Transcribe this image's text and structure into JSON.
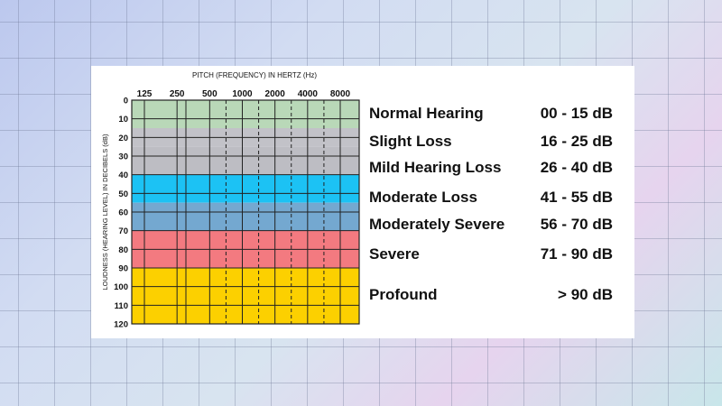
{
  "chart_data": {
    "type": "heatmap",
    "title": "",
    "xlabel": "PITCH (FREQUENCY) IN HERTZ (Hz)",
    "ylabel": "LOUDNESS (HEARING LEVEL) IN DECIBELS (dB)",
    "x_ticks": [
      "125",
      "250",
      "500",
      "1000",
      "2000",
      "4000",
      "8000"
    ],
    "y_ticks": [
      "0",
      "10",
      "20",
      "30",
      "40",
      "50",
      "60",
      "70",
      "80",
      "90",
      "100",
      "110",
      "120"
    ],
    "ylim": [
      0,
      120
    ],
    "y_inverted": true,
    "bands": [
      {
        "label": "Normal Hearing",
        "range": "00 - 15 dB",
        "from": 0,
        "to": 15,
        "color": "#b9d8b8"
      },
      {
        "label": "Slight Loss",
        "range": "16 - 25 dB",
        "from": 15,
        "to": 25,
        "color": "#c2c2c8"
      },
      {
        "label": "Mild Hearing Loss",
        "range": "26 - 40 dB",
        "from": 25,
        "to": 40,
        "color": "#bdbdc3"
      },
      {
        "label": "Moderate Loss",
        "range": "41 - 55 dB",
        "from": 40,
        "to": 55,
        "color": "#1cc2f4"
      },
      {
        "label": "Moderately Severe",
        "range": "56 - 70 dB",
        "from": 55,
        "to": 70,
        "color": "#74a8d0"
      },
      {
        "label": "Severe",
        "range": "71 - 90 dB",
        "from": 70,
        "to": 90,
        "color": "#f37a80"
      },
      {
        "label": "Profound",
        "range": "> 90 dB",
        "from": 90,
        "to": 120,
        "color": "#fcd000"
      }
    ]
  }
}
